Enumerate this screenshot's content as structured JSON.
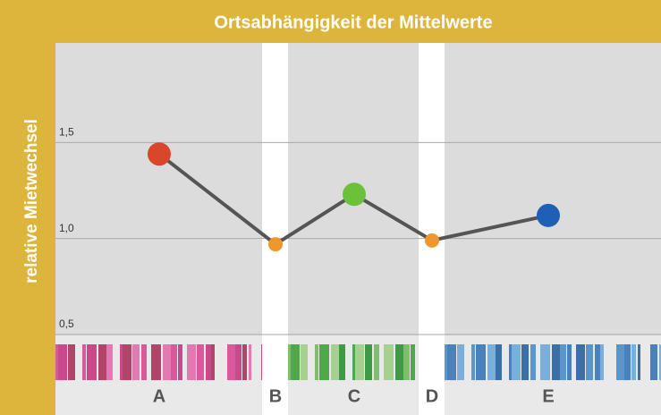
{
  "chart_data": {
    "type": "line",
    "title": "Ortsabhängigkeit der Mittelwerte",
    "y_label": "relative Mietwechsel",
    "categories": [
      "A",
      "B",
      "C",
      "D",
      "E"
    ],
    "series": [
      {
        "values": [
          1.44,
          0.97,
          1.23,
          0.99,
          1.12
        ],
        "color": "#555555",
        "point_colors": [
          "#d9462a",
          "#f0962e",
          "#6cc13a",
          "#f0962e",
          "#1f5fb5"
        ],
        "point_sizes": [
          "large",
          "small",
          "large",
          "small",
          "large"
        ]
      }
    ],
    "ylim": [
      0.5,
      2.0
    ],
    "yticks": [
      {
        "value": 0.5,
        "label": "0,5"
      },
      {
        "value": 1.0,
        "label": "1,0"
      },
      {
        "value": 1.5,
        "label": "1,5"
      }
    ],
    "grid": true
  }
}
